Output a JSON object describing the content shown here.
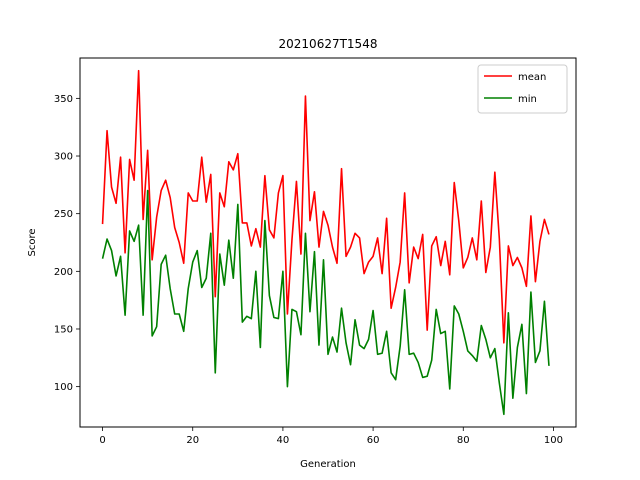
{
  "chart_data": {
    "type": "line",
    "title": "20210627T1548",
    "xlabel": "Generation",
    "ylabel": "Score",
    "xlim": [
      -5,
      105
    ],
    "ylim": [
      65,
      385
    ],
    "xticks": [
      0,
      20,
      40,
      60,
      80,
      100
    ],
    "yticks": [
      100,
      150,
      200,
      250,
      300,
      350
    ],
    "grid": false,
    "legend_position": "top-right",
    "series": [
      {
        "name": "mean",
        "color": "#ff0000",
        "x": [
          0,
          1,
          2,
          3,
          4,
          5,
          6,
          7,
          8,
          9,
          10,
          11,
          12,
          13,
          14,
          15,
          16,
          17,
          18,
          19,
          20,
          21,
          22,
          23,
          24,
          25,
          26,
          27,
          28,
          29,
          30,
          31,
          32,
          33,
          34,
          35,
          36,
          37,
          38,
          39,
          40,
          41,
          42,
          43,
          44,
          45,
          46,
          47,
          48,
          49,
          50,
          51,
          52,
          53,
          54,
          55,
          56,
          57,
          58,
          59,
          60,
          61,
          62,
          63,
          64,
          65,
          66,
          67,
          68,
          69,
          70,
          71,
          72,
          73,
          74,
          75,
          76,
          77,
          78,
          79,
          80,
          81,
          82,
          83,
          84,
          85,
          86,
          87,
          88,
          89,
          90,
          91,
          92,
          93,
          94,
          95,
          96,
          97,
          98,
          99
        ],
        "values": [
          241,
          322,
          273,
          259,
          299,
          216,
          297,
          279,
          374,
          245,
          305,
          210,
          247,
          270,
          279,
          264,
          238,
          225,
          207,
          268,
          261,
          261,
          299,
          260,
          284,
          178,
          268,
          256,
          295,
          288,
          302,
          242,
          242,
          222,
          237,
          221,
          283,
          236,
          229,
          268,
          283,
          163,
          227,
          278,
          215,
          352,
          244,
          269,
          221,
          252,
          240,
          221,
          207,
          289,
          213,
          221,
          233,
          229,
          198,
          208,
          213,
          229,
          198,
          246,
          168,
          186,
          208,
          268,
          190,
          221,
          211,
          232,
          149,
          222,
          230,
          205,
          226,
          197,
          277,
          244,
          203,
          212,
          229,
          210,
          261,
          199,
          221,
          286,
          228,
          138,
          222,
          205,
          212,
          203,
          187,
          248,
          191,
          226,
          245,
          232
        ]
      },
      {
        "name": "min",
        "color": "#008000",
        "x": [
          0,
          1,
          2,
          3,
          4,
          5,
          6,
          7,
          8,
          9,
          10,
          11,
          12,
          13,
          14,
          15,
          16,
          17,
          18,
          19,
          20,
          21,
          22,
          23,
          24,
          25,
          26,
          27,
          28,
          29,
          30,
          31,
          32,
          33,
          34,
          35,
          36,
          37,
          38,
          39,
          40,
          41,
          42,
          43,
          44,
          45,
          46,
          47,
          48,
          49,
          50,
          51,
          52,
          53,
          54,
          55,
          56,
          57,
          58,
          59,
          60,
          61,
          62,
          63,
          64,
          65,
          66,
          67,
          68,
          69,
          70,
          71,
          72,
          73,
          74,
          75,
          76,
          77,
          78,
          79,
          80,
          81,
          82,
          83,
          84,
          85,
          86,
          87,
          88,
          89,
          90,
          91,
          92,
          93,
          94,
          95,
          96,
          97,
          98,
          99
        ],
        "values": [
          211,
          228,
          218,
          196,
          213,
          162,
          235,
          226,
          240,
          162,
          270,
          144,
          152,
          206,
          214,
          185,
          163,
          163,
          148,
          185,
          208,
          218,
          186,
          194,
          233,
          112,
          215,
          188,
          227,
          194,
          258,
          156,
          161,
          159,
          200,
          134,
          244,
          179,
          160,
          159,
          200,
          100,
          167,
          165,
          145,
          233,
          165,
          217,
          136,
          210,
          128,
          143,
          130,
          168,
          138,
          119,
          158,
          136,
          133,
          141,
          166,
          128,
          129,
          148,
          112,
          106,
          135,
          184,
          128,
          129,
          121,
          108,
          109,
          123,
          167,
          146,
          148,
          98,
          170,
          163,
          148,
          131,
          127,
          122,
          153,
          141,
          125,
          133,
          103,
          76,
          164,
          90,
          134,
          154,
          94,
          182,
          121,
          131,
          174,
          118
        ]
      }
    ]
  }
}
